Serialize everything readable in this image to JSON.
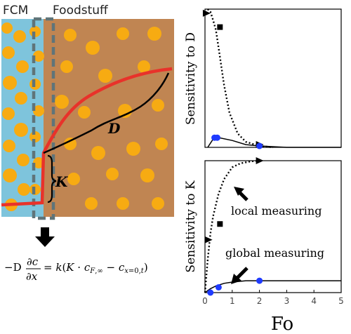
{
  "schematic": {
    "fcm_label": "FCM",
    "foodstuff_label": "Foodstuff",
    "d_label": "D",
    "k_label": "K",
    "equation": "−D ∂c/∂x = k(K · c_F,∞ − c_x=0,t)",
    "colors": {
      "fcm": "#7ec4dc",
      "foodstuff": "#c08552",
      "particle": "#f7ab12",
      "fcm_curve": "#e8322a",
      "food_curve": "#000000",
      "interface": "#5f7479"
    }
  },
  "chart_data": [
    {
      "type": "line",
      "ylabel": "Sensitivity to D",
      "xlabel": "",
      "xlim": [
        0,
        5
      ],
      "ylim": [
        0,
        1
      ],
      "grid": false,
      "series": [
        {
          "style": "dotted",
          "x": [
            0.1,
            0.2,
            0.3,
            0.4,
            0.5,
            0.7,
            0.9,
            1.2,
            1.5,
            2,
            2.5
          ],
          "y": [
            1.0,
            0.98,
            0.92,
            0.85,
            0.72,
            0.45,
            0.25,
            0.1,
            0.04,
            0.01,
            0.0
          ]
        },
        {
          "style": "solid",
          "x": [
            0.1,
            0.3,
            0.5,
            1,
            1.5,
            2,
            3,
            5
          ],
          "y": [
            0.0,
            0.06,
            0.07,
            0.05,
            0.02,
            0.01,
            0.0,
            0.0
          ]
        }
      ],
      "markers": [
        {
          "shape": "triangle",
          "color": "#000000",
          "x": 0.05,
          "y": 0.97
        },
        {
          "shape": "square",
          "color": "#000000",
          "x": 0.55,
          "y": 0.87
        },
        {
          "shape": "triangle",
          "color": "#000000",
          "x": 2.0,
          "y": 0.02
        },
        {
          "shape": "circle",
          "color": "#1f3bff",
          "x": 0.35,
          "y": 0.07
        },
        {
          "shape": "circle",
          "color": "#1f3bff",
          "x": 0.45,
          "y": 0.07
        },
        {
          "shape": "circle",
          "color": "#1f3bff",
          "x": 2.0,
          "y": 0.01
        }
      ]
    },
    {
      "type": "line",
      "ylabel": "Sensitivity to K",
      "xlabel": "Fo",
      "xlim": [
        0,
        5
      ],
      "ylim": [
        0,
        1
      ],
      "xticks": [
        "0",
        "1",
        "2",
        "3",
        "4",
        "5"
      ],
      "grid": false,
      "series": [
        {
          "style": "dotted",
          "x": [
            0,
            0.1,
            0.2,
            0.3,
            0.5,
            0.7,
            1.0,
            1.3,
            1.7,
            2.0
          ],
          "y": [
            0.0,
            0.25,
            0.45,
            0.58,
            0.75,
            0.86,
            0.95,
            0.98,
            0.995,
            1.0
          ]
        },
        {
          "style": "solid",
          "x": [
            0,
            0.2,
            0.4,
            0.7,
            1,
            1.5,
            2,
            3,
            5
          ],
          "y": [
            0.0,
            0.03,
            0.05,
            0.07,
            0.08,
            0.09,
            0.09,
            0.09,
            0.09
          ]
        }
      ],
      "markers": [
        {
          "shape": "triangle",
          "color": "#000000",
          "x": 2.0,
          "y": 1.0
        },
        {
          "shape": "square",
          "color": "#000000",
          "x": 0.55,
          "y": 0.52
        },
        {
          "shape": "triangle",
          "color": "#000000",
          "x": 0.12,
          "y": 0.4
        },
        {
          "shape": "circle",
          "color": "#1f3bff",
          "x": 0.2,
          "y": 0.0
        },
        {
          "shape": "circle",
          "color": "#1f3bff",
          "x": 0.5,
          "y": 0.04
        },
        {
          "shape": "circle",
          "color": "#1f3bff",
          "x": 2.0,
          "y": 0.09
        }
      ],
      "annotations": [
        "local measuring",
        "global measuring"
      ]
    }
  ]
}
